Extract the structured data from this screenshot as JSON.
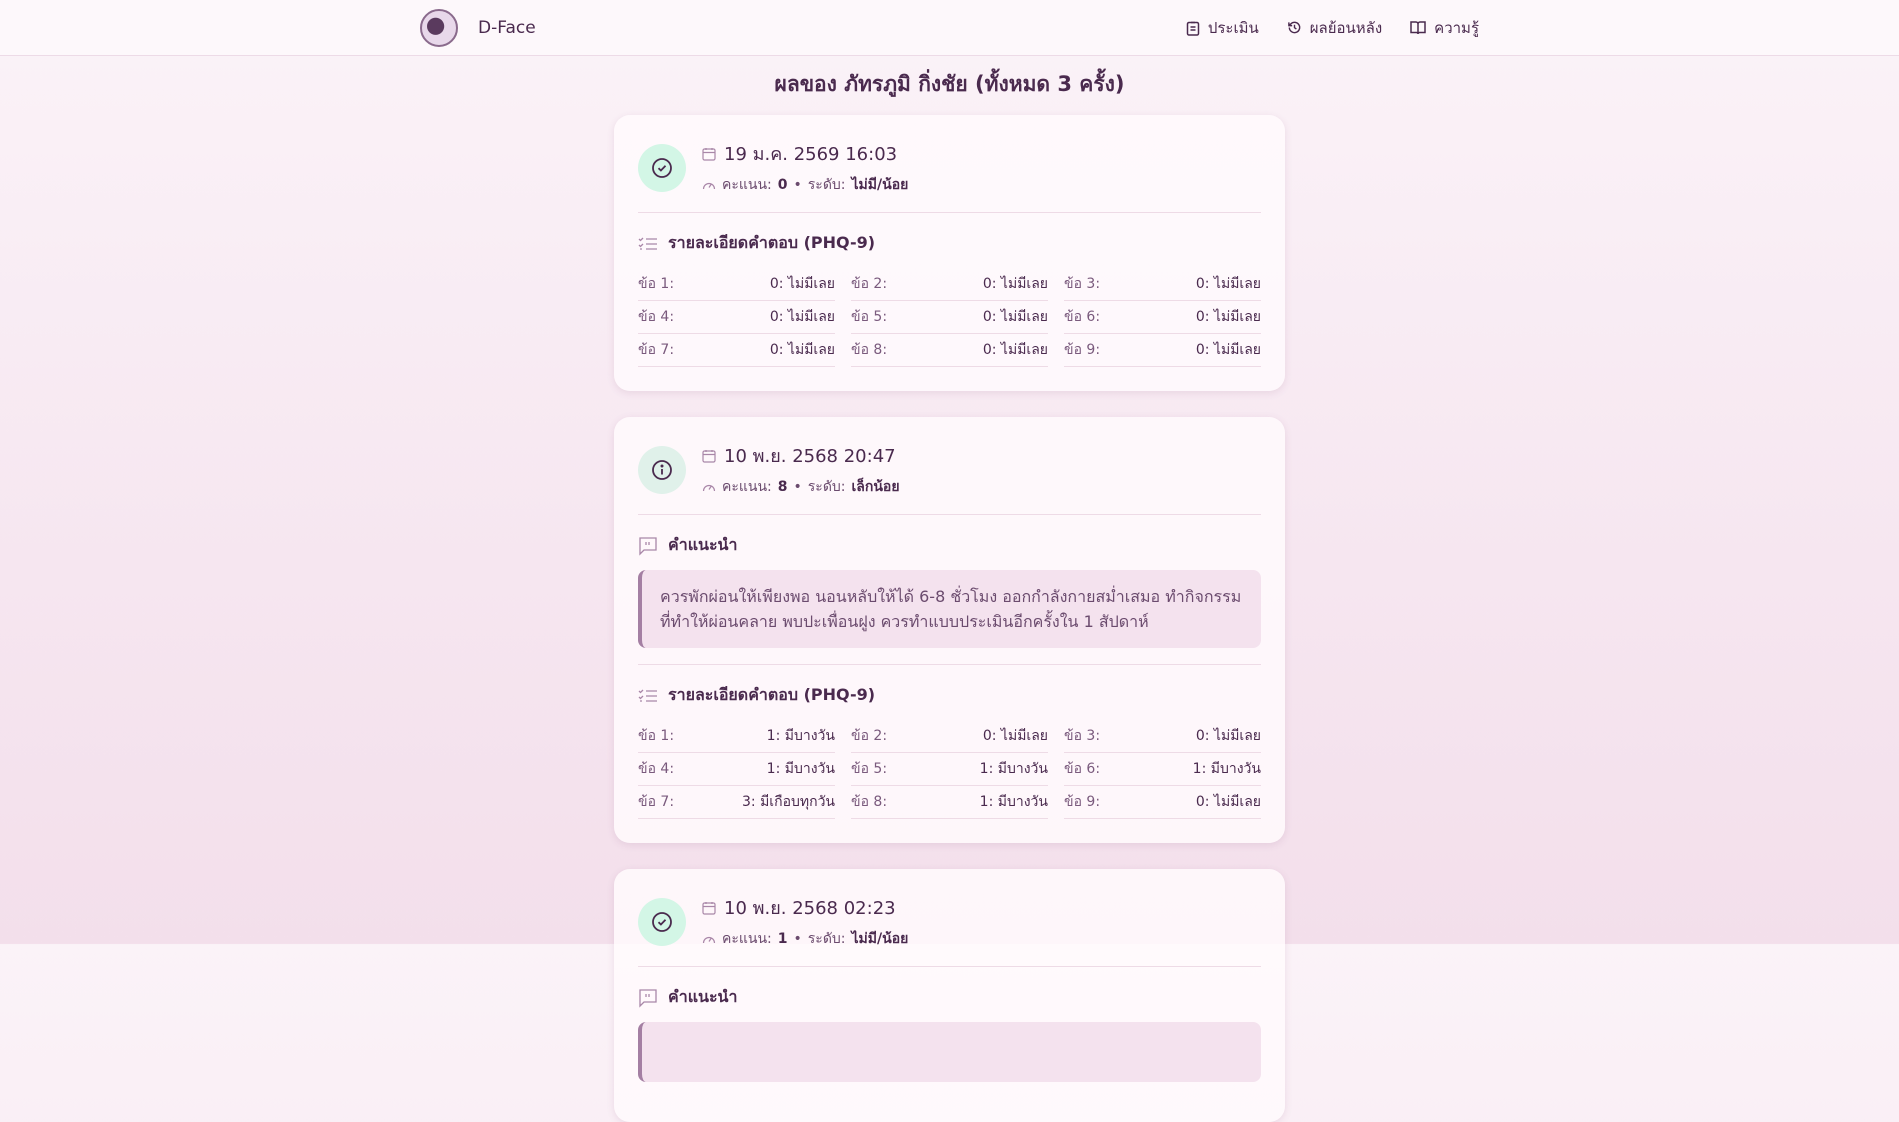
{
  "nav": {
    "brand": "D-Face",
    "links": [
      {
        "label": "ประเมิน",
        "icon": "clipboard-icon"
      },
      {
        "label": "ผลย้อนหลัง",
        "icon": "history-icon"
      },
      {
        "label": "ความรู้",
        "icon": "book-icon"
      }
    ]
  },
  "page_title": "ผลของ ภัทรภูมิ กิ่งชัย (ทั้งหมด 3 ครั้ง)",
  "labels": {
    "score": "คะแนน:",
    "level": "ระดับ:",
    "advice": "คำแนะนำ",
    "details": "รายละเอียดคำตอบ (PHQ-9)"
  },
  "records": [
    {
      "date": "19 ม.ค. 2569 16:03",
      "score": "0",
      "level": "ไม่มี/น้อย",
      "status_icon": "check-circle-icon",
      "status_color": "#d3f6e6",
      "answers": [
        [
          "ข้อ 1:",
          "0: ไม่มีเลย"
        ],
        [
          "ข้อ 2:",
          "0: ไม่มีเลย"
        ],
        [
          "ข้อ 3:",
          "0: ไม่มีเลย"
        ],
        [
          "ข้อ 4:",
          "0: ไม่มีเลย"
        ],
        [
          "ข้อ 5:",
          "0: ไม่มีเลย"
        ],
        [
          "ข้อ 6:",
          "0: ไม่มีเลย"
        ],
        [
          "ข้อ 7:",
          "0: ไม่มีเลย"
        ],
        [
          "ข้อ 8:",
          "0: ไม่มีเลย"
        ],
        [
          "ข้อ 9:",
          "0: ไม่มีเลย"
        ]
      ]
    },
    {
      "date": "10 พ.ย. 2568 20:47",
      "score": "8",
      "level": "เล็กน้อย",
      "status_icon": "info-circle-icon",
      "status_color": "#e0f1ea",
      "advice": "ควรพักผ่อนให้เพียงพอ นอนหลับให้ได้ 6-8 ชั่วโมง ออกกำลังกายสม่ำเสมอ ทำกิจกรรมที่ทำให้ผ่อนคลาย พบปะเพื่อนฝูง ควรทำแบบประเมินอีกครั้งใน 1 สัปดาห์",
      "answers": [
        [
          "ข้อ 1:",
          "1: มีบางวัน"
        ],
        [
          "ข้อ 2:",
          "0: ไม่มีเลย"
        ],
        [
          "ข้อ 3:",
          "0: ไม่มีเลย"
        ],
        [
          "ข้อ 4:",
          "1: มีบางวัน"
        ],
        [
          "ข้อ 5:",
          "1: มีบางวัน"
        ],
        [
          "ข้อ 6:",
          "1: มีบางวัน"
        ],
        [
          "ข้อ 7:",
          "3: มีเกือบทุกวัน"
        ],
        [
          "ข้อ 8:",
          "1: มีบางวัน"
        ],
        [
          "ข้อ 9:",
          "0: ไม่มีเลย"
        ]
      ]
    },
    {
      "date": "10 พ.ย. 2568 02:23",
      "score": "1",
      "level": "ไม่มี/น้อย",
      "status_icon": "check-circle-icon",
      "status_color": "#d3f6e6"
    }
  ]
}
